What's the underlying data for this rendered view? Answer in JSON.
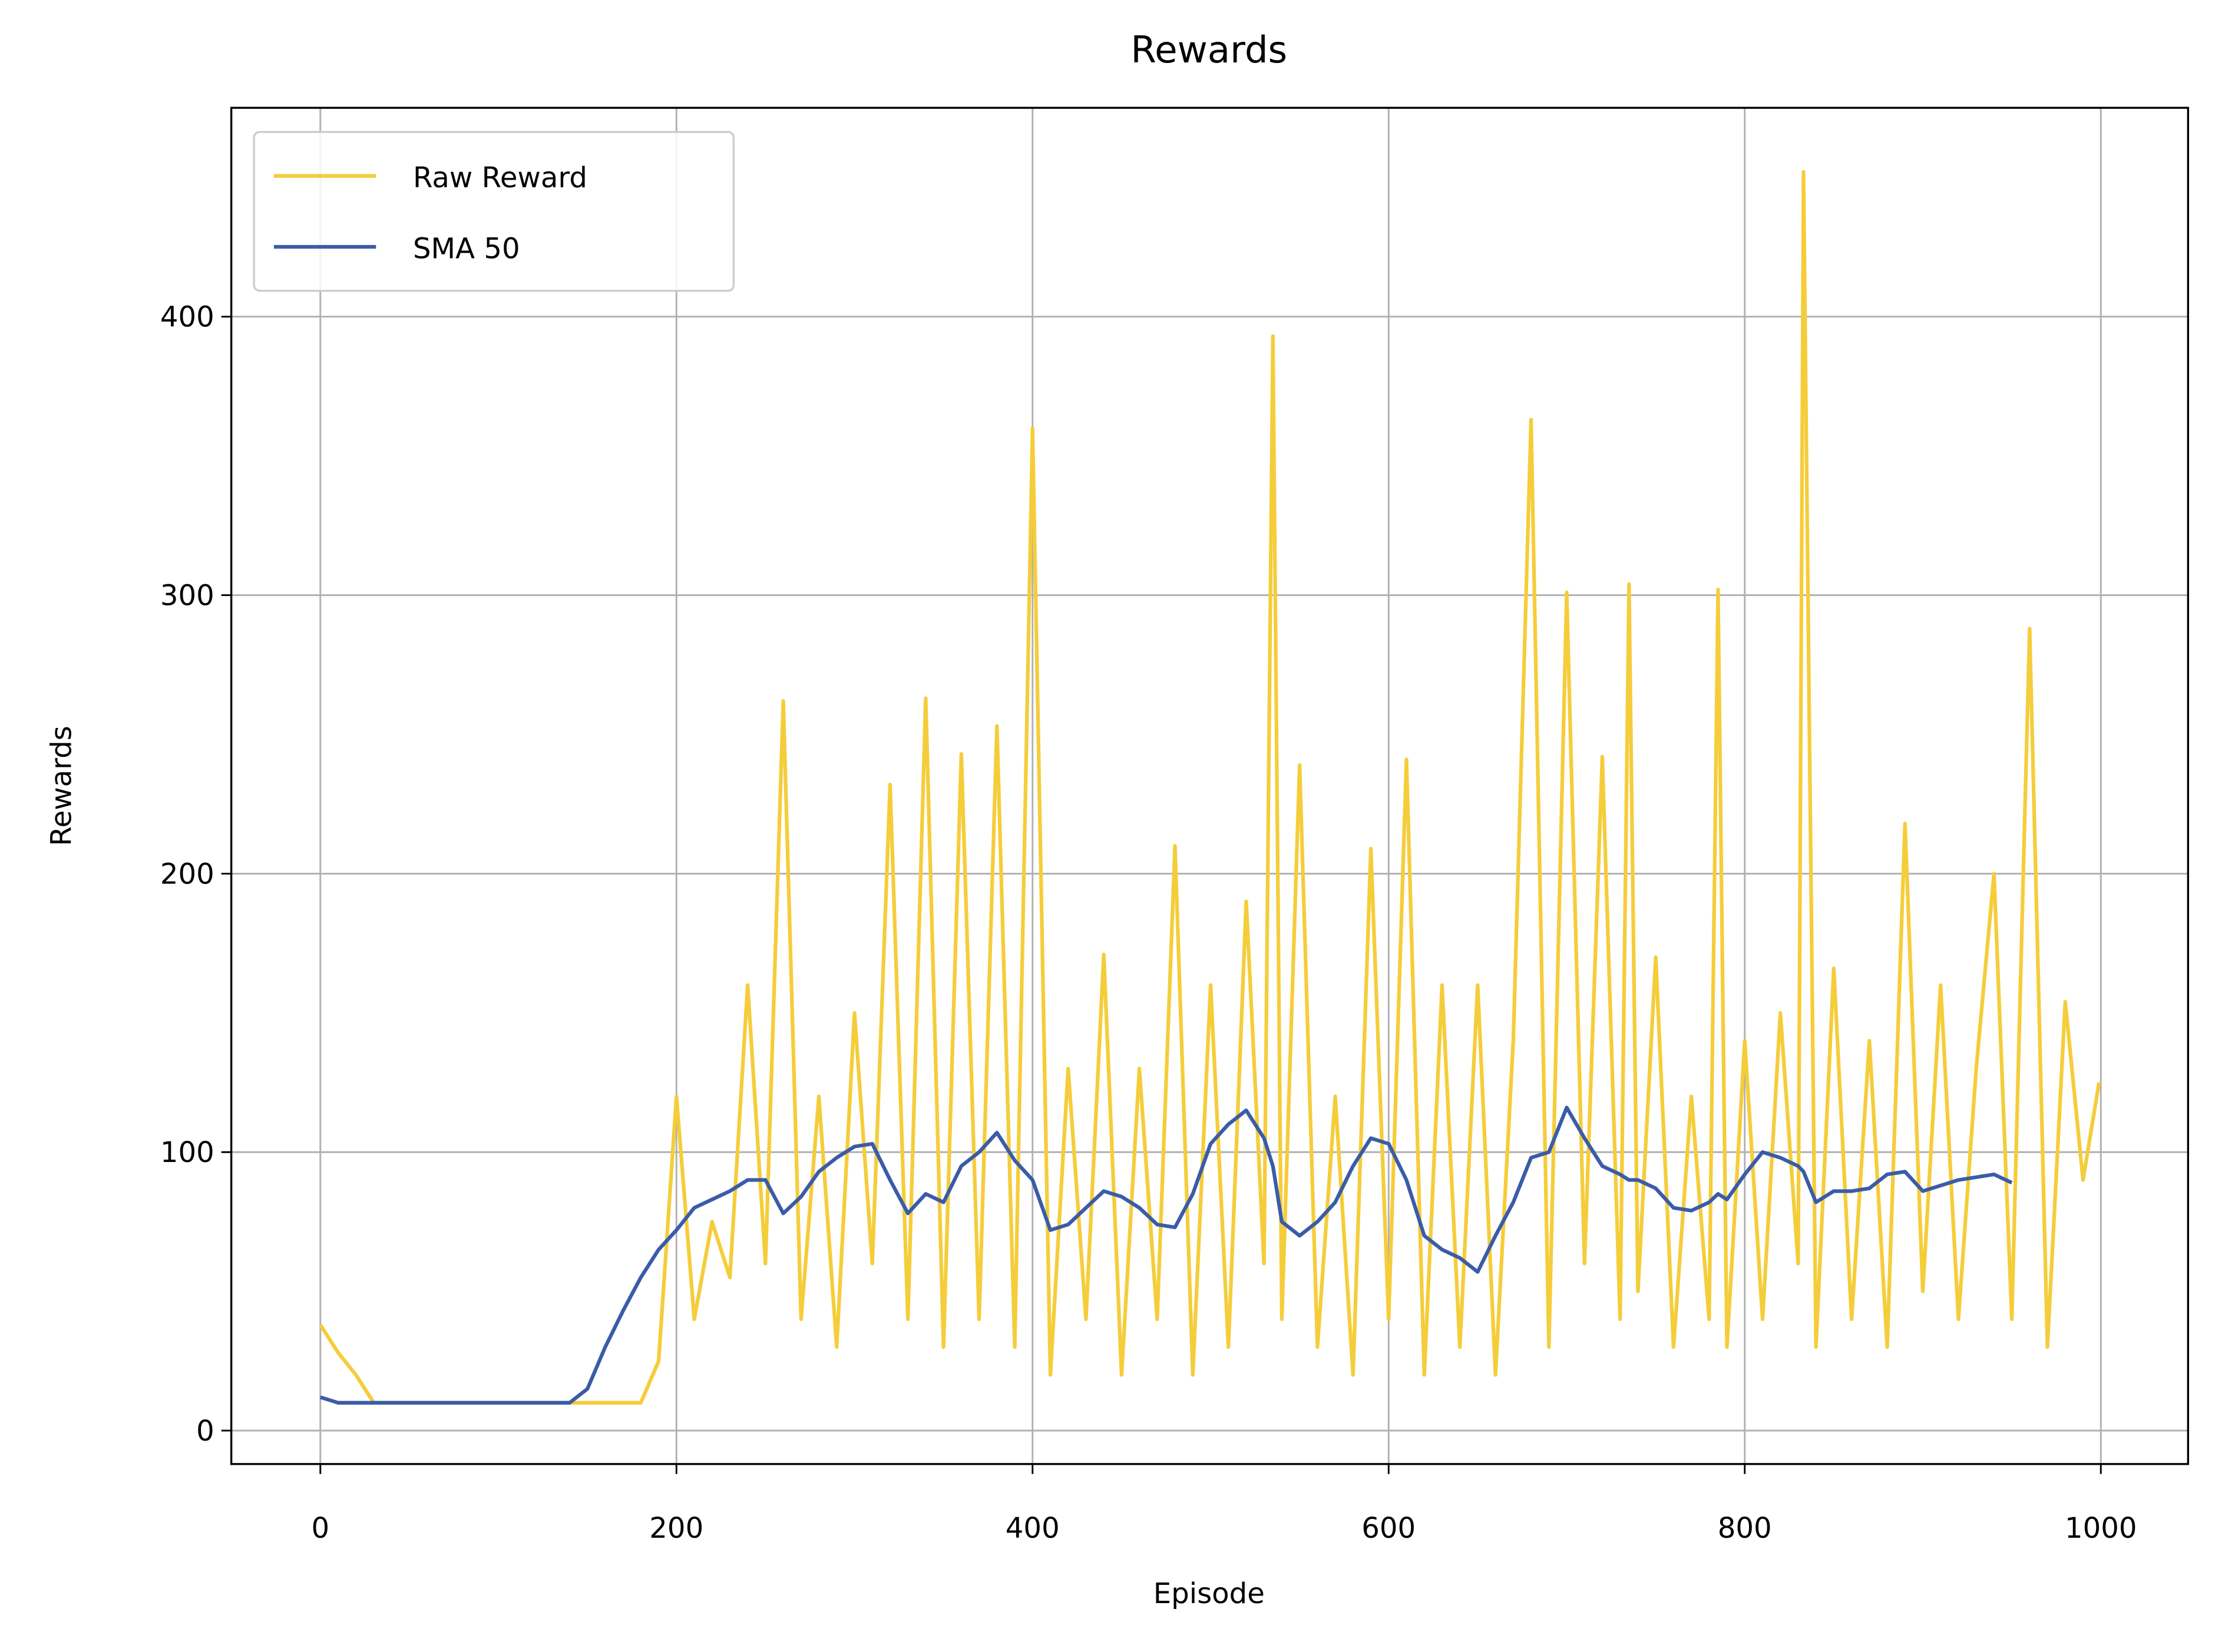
{
  "chart_data": {
    "type": "line",
    "title": "Rewards",
    "xlabel": "Episode",
    "ylabel": "Rewards",
    "x": [
      0,
      10,
      20,
      30,
      40,
      50,
      60,
      70,
      80,
      90,
      100,
      110,
      120,
      130,
      140,
      150,
      160,
      170,
      180,
      190,
      200,
      210,
      220,
      230,
      240,
      250,
      260,
      270,
      280,
      290,
      300,
      310,
      320,
      330,
      340,
      350,
      360,
      370,
      380,
      390,
      400,
      410,
      420,
      430,
      440,
      450,
      460,
      470,
      480,
      490,
      500,
      510,
      520,
      530,
      535,
      540,
      550,
      560,
      570,
      580,
      590,
      600,
      610,
      620,
      630,
      640,
      650,
      660,
      670,
      680,
      690,
      700,
      710,
      720,
      730,
      735,
      740,
      750,
      760,
      770,
      780,
      785,
      790,
      800,
      810,
      820,
      830,
      833,
      840,
      850,
      860,
      870,
      880,
      890,
      900,
      910,
      920,
      930,
      940,
      950,
      960,
      970,
      980,
      990,
      999
    ],
    "series": [
      {
        "name": "Raw Reward",
        "color": "#f5cd3a",
        "values": [
          38,
          28,
          20,
          10,
          10,
          10,
          10,
          10,
          10,
          10,
          10,
          10,
          10,
          10,
          10,
          10,
          10,
          10,
          10,
          25,
          120,
          40,
          75,
          55,
          160,
          60,
          262,
          40,
          120,
          30,
          150,
          60,
          232,
          40,
          263,
          30,
          243,
          40,
          253,
          30,
          360,
          20,
          130,
          40,
          171,
          20,
          130,
          40,
          210,
          20,
          160,
          30,
          190,
          60,
          393,
          40,
          239,
          30,
          120,
          20,
          209,
          40,
          241,
          20,
          160,
          30,
          160,
          20,
          140,
          363,
          30,
          301,
          60,
          242,
          40,
          304,
          50,
          170,
          30,
          120,
          40,
          302,
          30,
          140,
          40,
          150,
          60,
          452,
          30,
          166,
          40,
          140,
          30,
          218,
          50,
          160,
          40,
          130,
          200,
          40,
          288,
          30,
          154,
          90,
          125
        ]
      },
      {
        "name": "SMA 50",
        "color": "#3a5ca8",
        "values": [
          12,
          10,
          10,
          10,
          10,
          10,
          10,
          10,
          10,
          10,
          10,
          10,
          10,
          10,
          10,
          15,
          30,
          43,
          55,
          65,
          72,
          80,
          83,
          86,
          90,
          90,
          78,
          84,
          93,
          98,
          102,
          103,
          90,
          78,
          85,
          82,
          95,
          100,
          107,
          97,
          90,
          72,
          74,
          80,
          86,
          84,
          80,
          74,
          73,
          85,
          103,
          110,
          115,
          105,
          95,
          75,
          70,
          75,
          82,
          95,
          105,
          103,
          90,
          70,
          65,
          62,
          57,
          70,
          82,
          98,
          100,
          116,
          105,
          95,
          92,
          90,
          90,
          87,
          80,
          79,
          82,
          85,
          83,
          92,
          100,
          98,
          95,
          93,
          82,
          86,
          86,
          87,
          92,
          93,
          86,
          88,
          90,
          91,
          92,
          89,
          null,
          null,
          null,
          null,
          null
        ]
      }
    ],
    "xlim": [
      -50,
      1049
    ],
    "ylim": [
      -12,
      475
    ],
    "xticks": [
      0,
      200,
      400,
      600,
      800,
      1000
    ],
    "yticks": [
      0,
      100,
      200,
      300,
      400
    ],
    "grid": true,
    "legend": "upper left"
  }
}
